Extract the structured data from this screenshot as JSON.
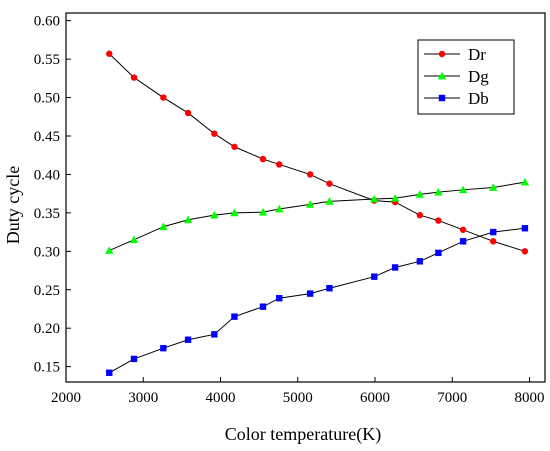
{
  "chart_data": {
    "type": "line",
    "xlabel": "Color temperature(K)",
    "ylabel": "Duty cycle",
    "xlim": [
      2000,
      8200
    ],
    "ylim": [
      0.13,
      0.61
    ],
    "xticks": [
      2000,
      3000,
      4000,
      5000,
      6000,
      7000,
      8000
    ],
    "yticks": [
      0.15,
      0.2,
      0.25,
      0.3,
      0.35,
      0.4,
      0.45,
      0.5,
      0.55,
      0.6
    ],
    "x": [
      2560,
      2880,
      3260,
      3580,
      3920,
      4180,
      4550,
      4760,
      5160,
      5410,
      5990,
      6260,
      6580,
      6820,
      7140,
      7530,
      7940
    ],
    "series": [
      {
        "name": "Dr",
        "color": "#ff0000",
        "marker": "circle",
        "values": [
          0.557,
          0.526,
          0.5,
          0.48,
          0.453,
          0.436,
          0.42,
          0.413,
          0.4,
          0.388,
          0.366,
          0.364,
          0.347,
          0.34,
          0.328,
          0.313,
          0.3
        ]
      },
      {
        "name": "Dg",
        "color": "#00ff00",
        "marker": "triangle",
        "values": [
          0.301,
          0.315,
          0.332,
          0.341,
          0.347,
          0.35,
          0.351,
          0.355,
          0.361,
          0.365,
          0.368,
          0.369,
          0.374,
          0.377,
          0.38,
          0.383,
          0.39
        ]
      },
      {
        "name": "Db",
        "color": "#0000ff",
        "marker": "square",
        "values": [
          0.142,
          0.16,
          0.174,
          0.185,
          0.192,
          0.215,
          0.228,
          0.239,
          0.245,
          0.252,
          0.267,
          0.279,
          0.287,
          0.298,
          0.313,
          0.325,
          0.33
        ]
      }
    ],
    "grid": false,
    "legend": "top-right"
  }
}
